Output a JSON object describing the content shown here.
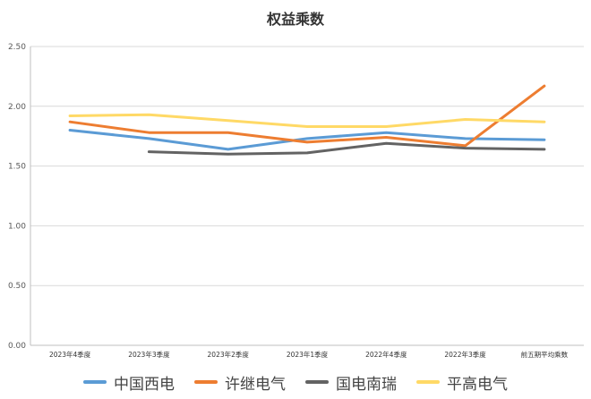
{
  "chart_data": {
    "type": "line",
    "title": "权益乘数",
    "categories": [
      "2023年4季度",
      "2023年3季度",
      "2023年2季度",
      "2023年1季度",
      "2022年4季度",
      "2022年3季度",
      "前五期平均乘数"
    ],
    "yticks": [
      "0.00",
      "0.50",
      "1.00",
      "1.50",
      "2.00",
      "2.50"
    ],
    "ylim": [
      0,
      2.5
    ],
    "grid": true,
    "legend_position": "bottom",
    "series": [
      {
        "name": "中国西电",
        "color": "#5b9bd5",
        "values": [
          1.8,
          1.73,
          1.64,
          1.73,
          1.78,
          1.73,
          1.72
        ]
      },
      {
        "name": "许继电气",
        "color": "#ed7d31",
        "values": [
          1.87,
          1.78,
          1.78,
          1.7,
          1.74,
          1.67,
          2.17
        ]
      },
      {
        "name": "国电南瑞",
        "color": "#636363",
        "values": [
          null,
          1.62,
          1.6,
          1.61,
          1.69,
          1.65,
          1.64
        ]
      },
      {
        "name": "平高电气",
        "color": "#ffd966",
        "values": [
          1.92,
          1.93,
          1.88,
          1.83,
          1.83,
          1.89,
          1.87
        ]
      }
    ]
  }
}
